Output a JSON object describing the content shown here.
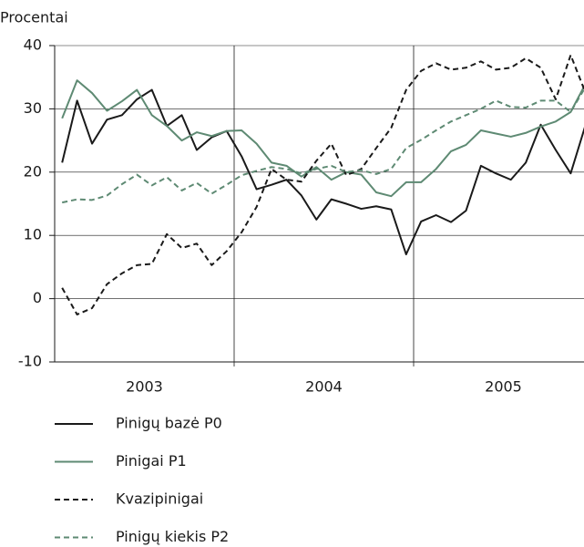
{
  "chart_data": {
    "type": "line",
    "y_label": "Procentai",
    "x": [
      0.5,
      1.5,
      2.5,
      3.5,
      4.5,
      5.5,
      6.5,
      7.5,
      8.5,
      9.5,
      10.5,
      11.5,
      12.5,
      13.5,
      14.5,
      15.5,
      16.5,
      17.5,
      18.5,
      19.5,
      20.5,
      21.5,
      22.5,
      23.5,
      24.5,
      25.5,
      26.5,
      27.5,
      28.5,
      29.5,
      30.5,
      31.5,
      32.5,
      33.5,
      34.5,
      35.5
    ],
    "xlim": [
      0,
      36
    ],
    "xticks": [
      12,
      24
    ],
    "year_labels": [
      {
        "value": 6,
        "label": "2003"
      },
      {
        "value": 18,
        "label": "2004"
      },
      {
        "value": 30,
        "label": "2005"
      }
    ],
    "ylim": [
      -10,
      40
    ],
    "yticks": [
      -10,
      0,
      10,
      20,
      30,
      40
    ],
    "grid": true,
    "series": [
      {
        "name": "Pinigų bazė P0",
        "color": "#1a1a1a",
        "dashed": false,
        "values": [
          21.5,
          31.3,
          24.5,
          28.3,
          29,
          31.5,
          33,
          27.3,
          29,
          23.5,
          25.5,
          26.5,
          22.5,
          17.3,
          18,
          18.8,
          16.3,
          12.5,
          15.7,
          15,
          14.2,
          14.6,
          14.1,
          7,
          12.2,
          13.2,
          12.1,
          13.9,
          21,
          19.8,
          18.8,
          21.5,
          27.5,
          23.5,
          19.8,
          27.5
        ]
      },
      {
        "name": "Pinigai P1",
        "color": "#5e8a73",
        "dashed": false,
        "values": [
          28.5,
          34.5,
          32.5,
          29.7,
          31.2,
          33,
          29,
          27.3,
          25,
          26.3,
          25.7,
          26.5,
          26.6,
          24.5,
          21.5,
          21,
          19.3,
          20.8,
          18.8,
          20,
          19.6,
          16.8,
          16.2,
          18.4,
          18.4,
          20.5,
          23.3,
          24.3,
          26.6,
          26.1,
          25.6,
          26.2,
          27.2,
          28,
          29.5,
          34
        ]
      },
      {
        "name": "Kvazipinigai",
        "color": "#1a1a1a",
        "dashed": true,
        "values": [
          1.7,
          -2.5,
          -1.5,
          2.3,
          4,
          5.3,
          5.5,
          10.2,
          8,
          8.7,
          5.3,
          7.5,
          10.5,
          14.5,
          20.5,
          18.8,
          18.5,
          21.8,
          24.5,
          19.5,
          20.5,
          23.8,
          27,
          33,
          36,
          37.2,
          36.2,
          36.5,
          37.5,
          36.2,
          36.5,
          38,
          36.5,
          31.5,
          38.5,
          32.5
        ]
      },
      {
        "name": "Pinigų kiekis P2",
        "color": "#5e8a73",
        "dashed": true,
        "values": [
          15.2,
          15.7,
          15.6,
          16.3,
          18.1,
          19.6,
          17.9,
          19.2,
          17.1,
          18.3,
          16.6,
          18,
          19.5,
          20.2,
          20.8,
          20.5,
          19.8,
          20.5,
          21,
          20,
          20.3,
          19.7,
          20.5,
          23.8,
          25.1,
          26.6,
          28,
          29,
          30,
          31.3,
          30.3,
          30.2,
          31.3,
          31.3,
          29.5,
          33.5
        ]
      }
    ]
  }
}
